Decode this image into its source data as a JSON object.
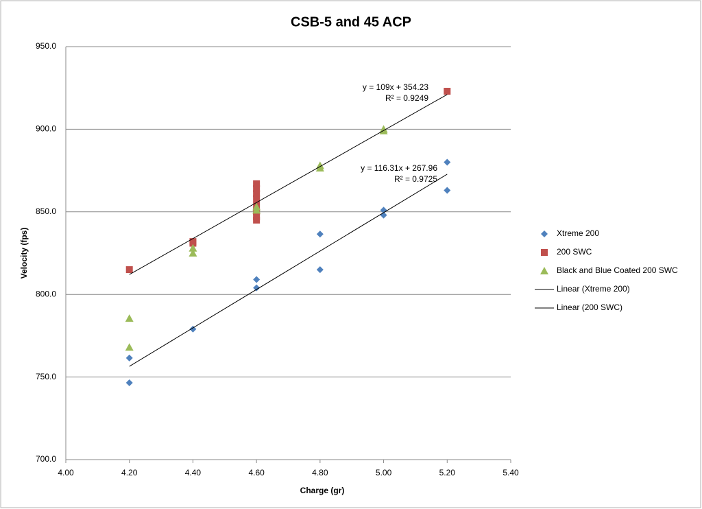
{
  "chart_data": {
    "type": "scatter",
    "title": "CSB-5 and 45 ACP",
    "x_label": "Charge (gr)",
    "y_label": "Velocity (fps)",
    "xlim": [
      4.0,
      5.4
    ],
    "xticks": [
      {
        "value": 4.0,
        "label": "4.00"
      },
      {
        "value": 4.2,
        "label": "4.20"
      },
      {
        "value": 4.4,
        "label": "4.40"
      },
      {
        "value": 4.6,
        "label": "4.60"
      },
      {
        "value": 4.8,
        "label": "4.80"
      },
      {
        "value": 5.0,
        "label": "5.00"
      },
      {
        "value": 5.2,
        "label": "5.20"
      },
      {
        "value": 5.4,
        "label": "5.40"
      }
    ],
    "ylim": [
      700,
      950
    ],
    "yticks": [
      {
        "value": 700,
        "label": "700.0"
      },
      {
        "value": 750,
        "label": "750.0"
      },
      {
        "value": 800,
        "label": "800.0"
      },
      {
        "value": 850,
        "label": "850.0"
      },
      {
        "value": 900,
        "label": "900.0"
      },
      {
        "value": 950,
        "label": "950.0"
      }
    ],
    "grid": true,
    "legend": "right",
    "series": [
      {
        "name": "Xtreme 200",
        "color": "#4f81bd",
        "marker": "diamond",
        "x": [
          4.2,
          4.2,
          4.4,
          4.6,
          4.6,
          4.8,
          4.8,
          5.0,
          5.0,
          5.2,
          5.2
        ],
        "values": [
          761.5,
          746.5,
          779,
          809,
          804,
          836.5,
          815,
          851,
          848,
          880,
          863
        ]
      },
      {
        "name": "200 SWC",
        "color": "#c0504d",
        "marker": "square",
        "x": [
          4.2,
          4.4,
          4.4,
          4.6,
          4.6,
          4.6,
          4.6,
          4.6,
          4.6,
          4.6,
          4.6,
          5.2
        ],
        "values": [
          815,
          832,
          831,
          867,
          864,
          861,
          858,
          854,
          850,
          847,
          845,
          923
        ]
      },
      {
        "name": "Black and Blue Coated 200 SWC",
        "color": "#9bbb59",
        "marker": "triangle",
        "x": [
          4.2,
          4.2,
          4.4,
          4.4,
          4.6,
          4.6,
          4.8,
          4.8,
          5.0,
          5.0
        ],
        "values": [
          785.5,
          768,
          825,
          828,
          851,
          853,
          876.5,
          878,
          899,
          900
        ]
      }
    ],
    "trendlines": [
      {
        "name": "Linear (Xtreme 200)",
        "color": "#000000",
        "slope": 116.31,
        "intercept": 267.96,
        "from": 4.2,
        "to": 5.2,
        "label": [
          "y = 116.31x + 267.96",
          "R² = 0.9725"
        ]
      },
      {
        "name": "Linear (200 SWC)",
        "color": "#000000",
        "slope": 109,
        "intercept": 354.23,
        "from": 4.2,
        "to": 5.2,
        "label": [
          "y = 109x + 354.23",
          "R² = 0.9249"
        ]
      }
    ]
  }
}
